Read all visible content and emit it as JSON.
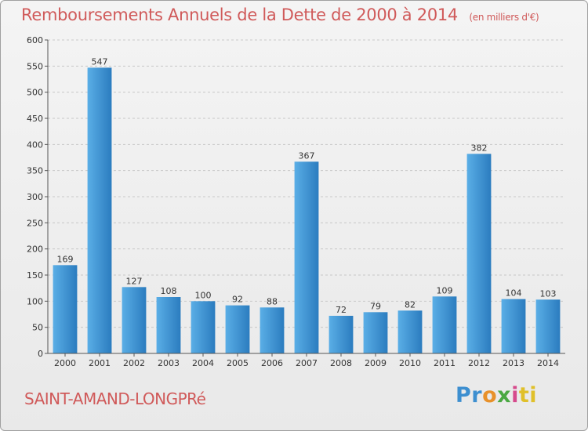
{
  "header": {
    "title": "Remboursements Annuels de la Dette de 2000 à 2014",
    "unit": "(en milliers d'€)"
  },
  "footer": {
    "city": "SAINT-AMAND-LONGPRé",
    "logo": [
      "Pr",
      "o",
      "x",
      "i",
      "ti"
    ]
  },
  "colors": {
    "bar_light": "#5aaee6",
    "bar_dark": "#2b7cbf",
    "title": "#d05a5a"
  },
  "chart_data": {
    "type": "bar",
    "title": "Remboursements Annuels de la Dette de 2000 à 2014",
    "categories": [
      "2000",
      "2001",
      "2002",
      "2003",
      "2004",
      "2005",
      "2006",
      "2007",
      "2008",
      "2009",
      "2010",
      "2011",
      "2012",
      "2013",
      "2014"
    ],
    "values": [
      169,
      547,
      127,
      108,
      100,
      92,
      88,
      367,
      72,
      79,
      82,
      109,
      382,
      104,
      103
    ],
    "ylim": [
      0,
      600
    ],
    "yticks": [
      0,
      50,
      100,
      150,
      200,
      250,
      300,
      350,
      400,
      450,
      500,
      550,
      600
    ],
    "grid": true
  }
}
